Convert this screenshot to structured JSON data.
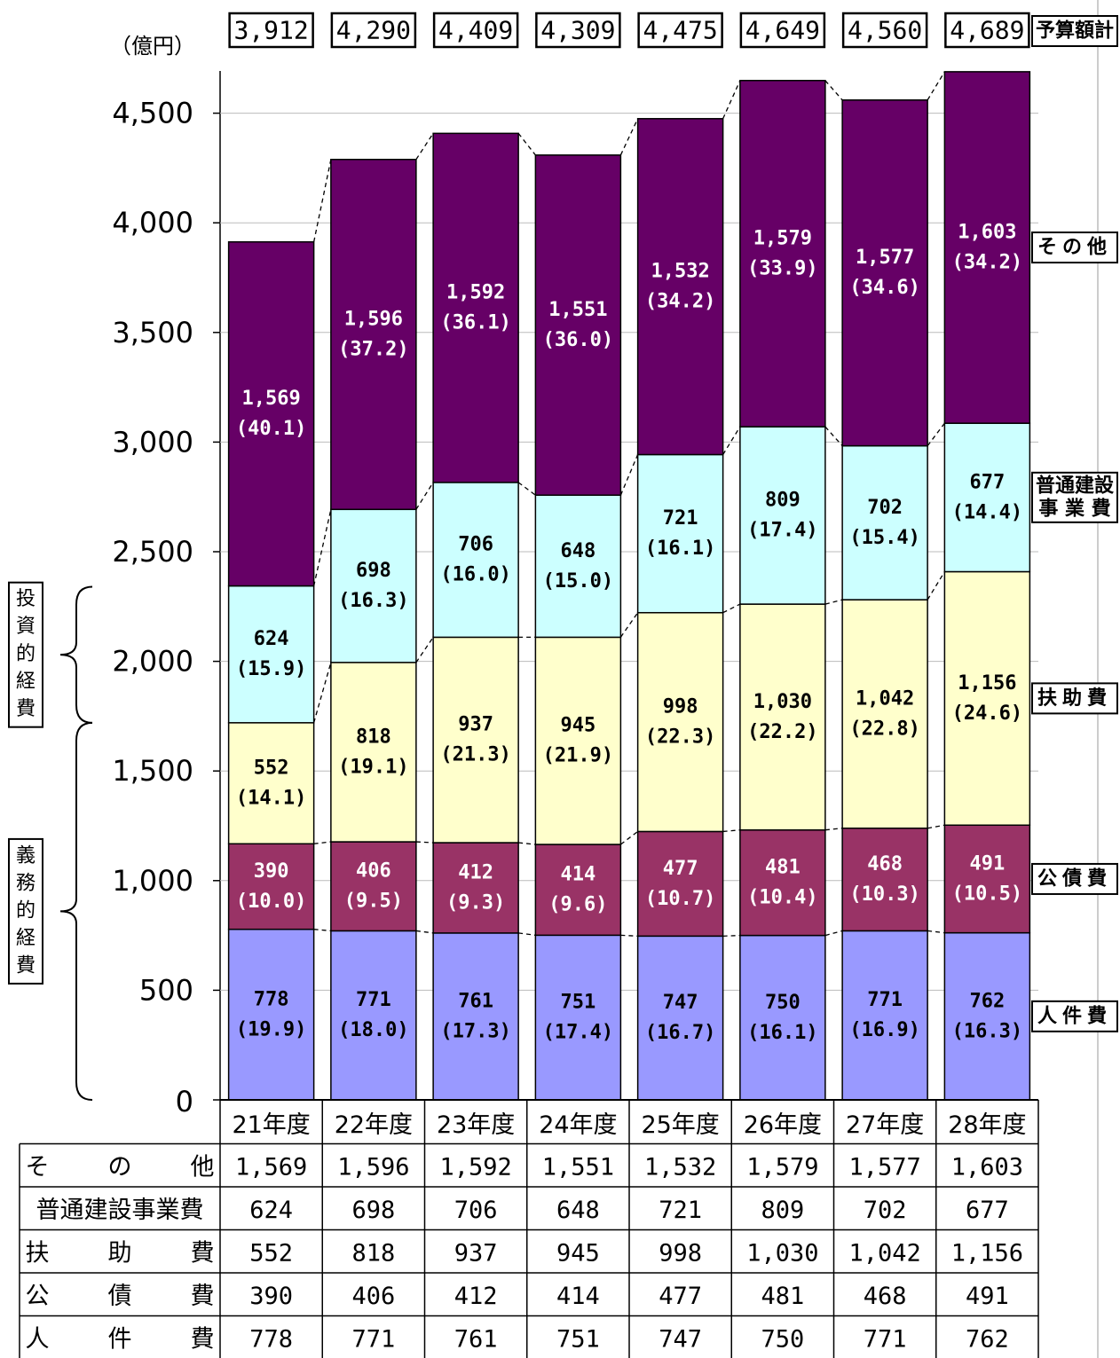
{
  "chart_data": {
    "type": "bar",
    "stacked": true,
    "unit_label": "（億円）",
    "ylim": [
      0,
      4700
    ],
    "yticks": [
      "0",
      "500",
      "1,000",
      "1,500",
      "2,000",
      "2,500",
      "3,000",
      "3,500",
      "4,000",
      "4,500"
    ],
    "ytick_values": [
      0,
      500,
      1000,
      1500,
      2000,
      2500,
      3000,
      3500,
      4000,
      4500
    ],
    "categories": [
      "21年度",
      "22年度",
      "23年度",
      "24年度",
      "25年度",
      "26年度",
      "27年度",
      "28年度"
    ],
    "totals_label": "予算額計",
    "totals": [
      3912,
      4290,
      4409,
      4309,
      4475,
      4649,
      4560,
      4689
    ],
    "totals_text": [
      "3,912",
      "4,290",
      "4,409",
      "4,309",
      "4,475",
      "4,649",
      "4,560",
      "4,689"
    ],
    "series": [
      {
        "name": "人件費",
        "table_name": "人　件　費",
        "color": "#9999ff",
        "values": [
          778,
          771,
          761,
          751,
          747,
          750,
          771,
          762
        ],
        "values_text": [
          "778",
          "771",
          "761",
          "751",
          "747",
          "750",
          "771",
          "762"
        ],
        "pct_text": [
          "(19.9)",
          "(18.0)",
          "(17.3)",
          "(17.4)",
          "(16.7)",
          "(16.1)",
          "(16.9)",
          "(16.3)"
        ]
      },
      {
        "name": "公債費",
        "table_name": "公　債　費",
        "color": "#993366",
        "values": [
          390,
          406,
          412,
          414,
          477,
          481,
          468,
          491
        ],
        "values_text": [
          "390",
          "406",
          "412",
          "414",
          "477",
          "481",
          "468",
          "491"
        ],
        "pct_text": [
          "(10.0)",
          "(9.5)",
          "(9.3)",
          "(9.6)",
          "(10.7)",
          "(10.4)",
          "(10.3)",
          "(10.5)"
        ]
      },
      {
        "name": "扶助費",
        "table_name": "扶　助　費",
        "color": "#ffffcc",
        "values": [
          552,
          818,
          937,
          945,
          998,
          1030,
          1042,
          1156
        ],
        "values_text": [
          "552",
          "818",
          "937",
          "945",
          "998",
          "1,030",
          "1,042",
          "1,156"
        ],
        "pct_text": [
          "(14.1)",
          "(19.1)",
          "(21.3)",
          "(21.9)",
          "(22.3)",
          "(22.2)",
          "(22.8)",
          "(24.6)"
        ]
      },
      {
        "name": "普通建設事業費",
        "legend_lines": [
          "普通建設",
          "事 業 費"
        ],
        "table_name": "普通建設事業費",
        "color": "#ccffff",
        "values": [
          624,
          698,
          706,
          648,
          721,
          809,
          702,
          677
        ],
        "values_text": [
          "624",
          "698",
          "706",
          "648",
          "721",
          "809",
          "702",
          "677"
        ],
        "pct_text": [
          "(15.9)",
          "(16.3)",
          "(16.0)",
          "(15.0)",
          "(16.1)",
          "(17.4)",
          "(15.4)",
          "(14.4)"
        ]
      },
      {
        "name": "その他",
        "table_name": "そ　の　他",
        "color": "#660066",
        "values": [
          1569,
          1596,
          1592,
          1551,
          1532,
          1579,
          1577,
          1603
        ],
        "values_text": [
          "1,569",
          "1,596",
          "1,592",
          "1,551",
          "1,532",
          "1,579",
          "1,577",
          "1,603"
        ],
        "pct_text": [
          "(40.1)",
          "(37.2)",
          "(36.1)",
          "(36.0)",
          "(34.2)",
          "(33.9)",
          "(34.6)",
          "(34.2)"
        ]
      }
    ],
    "table_order": [
      "その他",
      "普通建設事業費",
      "扶助費",
      "公債費",
      "人件費"
    ],
    "brackets": [
      {
        "label": "投資的経費",
        "from": 1720,
        "to": 2340
      },
      {
        "label": "義務的経費",
        "from": 0,
        "to": 1720
      }
    ]
  }
}
